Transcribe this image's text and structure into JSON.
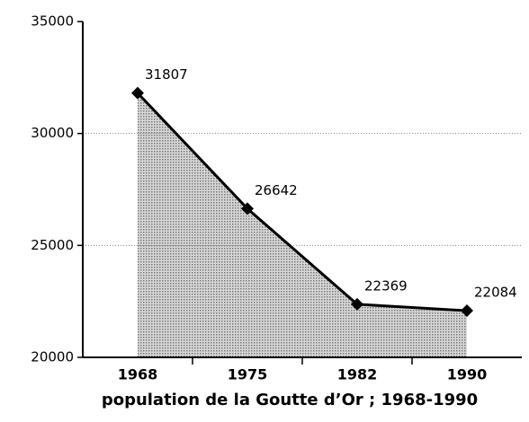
{
  "chart_data": {
    "type": "line",
    "title": "population de la Goutte d’Or ; 1968-1990",
    "categories": [
      "1968",
      "1975",
      "1982",
      "1990"
    ],
    "values": [
      31807,
      26642,
      22369,
      22084
    ],
    "color": "#000000",
    "area_color": "#b0b0b0",
    "ylim": [
      20000,
      35000
    ],
    "yticks": [
      20000,
      25000,
      30000,
      35000
    ],
    "grid": true
  }
}
